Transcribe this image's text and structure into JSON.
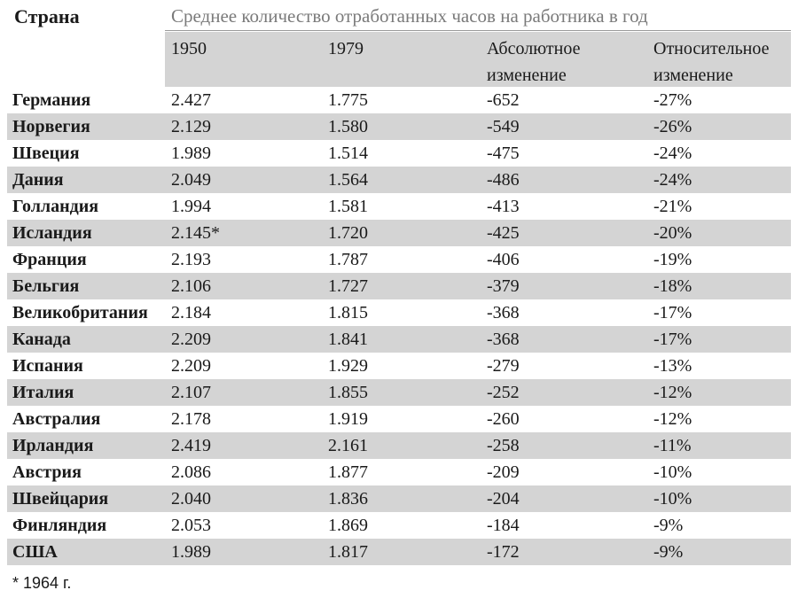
{
  "chart_data": {
    "type": "table",
    "header": {
      "country": "Страна",
      "title": "Среднее количество отработанных часов на работника в год",
      "columns": [
        "1950",
        "1979",
        "Абсолютное изменение",
        "Относительное изменение"
      ]
    },
    "columns_display": [
      [
        "1950"
      ],
      [
        "1979"
      ],
      [
        "Абсолютное",
        "изменение"
      ],
      [
        "Относительное",
        "изменение"
      ]
    ],
    "rows": [
      {
        "country": "Германия",
        "y1950": "2.427",
        "y1979": "1.775",
        "abs": "-652",
        "rel": "-27%"
      },
      {
        "country": "Норвегия",
        "y1950": "2.129",
        "y1979": "1.580",
        "abs": "-549",
        "rel": "-26%"
      },
      {
        "country": "Швеция",
        "y1950": "1.989",
        "y1979": "1.514",
        "abs": "-475",
        "rel": "-24%"
      },
      {
        "country": "Дания",
        "y1950": "2.049",
        "y1979": "1.564",
        "abs": "-486",
        "rel": "-24%"
      },
      {
        "country": "Голландия",
        "y1950": "1.994",
        "y1979": "1.581",
        "abs": "-413",
        "rel": "-21%"
      },
      {
        "country": "Исландия",
        "y1950": "2.145*",
        "y1979": "1.720",
        "abs": "-425",
        "rel": "-20%"
      },
      {
        "country": "Франция",
        "y1950": "2.193",
        "y1979": "1.787",
        "abs": "-406",
        "rel": "-19%"
      },
      {
        "country": "Бельгия",
        "y1950": "2.106",
        "y1979": "1.727",
        "abs": "-379",
        "rel": "-18%"
      },
      {
        "country": "Великобритания",
        "y1950": "2.184",
        "y1979": "1.815",
        "abs": "-368",
        "rel": "-17%"
      },
      {
        "country": "Канада",
        "y1950": "2.209",
        "y1979": "1.841",
        "abs": "-368",
        "rel": "-17%"
      },
      {
        "country": "Испания",
        "y1950": "2.209",
        "y1979": "1.929",
        "abs": "-279",
        "rel": "-13%"
      },
      {
        "country": "Италия",
        "y1950": "2.107",
        "y1979": "1.855",
        "abs": "-252",
        "rel": "-12%"
      },
      {
        "country": "Австралия",
        "y1950": "2.178",
        "y1979": "1.919",
        "abs": "-260",
        "rel": "-12%"
      },
      {
        "country": "Ирландия",
        "y1950": "2.419",
        "y1979": "2.161",
        "abs": "-258",
        "rel": "-11%"
      },
      {
        "country": "Австрия",
        "y1950": "2.086",
        "y1979": "1.877",
        "abs": "-209",
        "rel": "-10%"
      },
      {
        "country": "Швейцария",
        "y1950": "2.040",
        "y1979": "1.836",
        "abs": "-204",
        "rel": "-10%"
      },
      {
        "country": "Финляндия",
        "y1950": "2.053",
        "y1979": "1.869",
        "abs": "-184",
        "rel": "-9%"
      },
      {
        "country": "США",
        "y1950": "1.989",
        "y1979": "1.817",
        "abs": "-172",
        "rel": "-9%"
      }
    ],
    "footnote": "* 1964 г.",
    "colors": {
      "shaded_band": "#d4d4d4",
      "title_text": "#7a7a7a",
      "body_text": "#1a1a1a"
    }
  }
}
